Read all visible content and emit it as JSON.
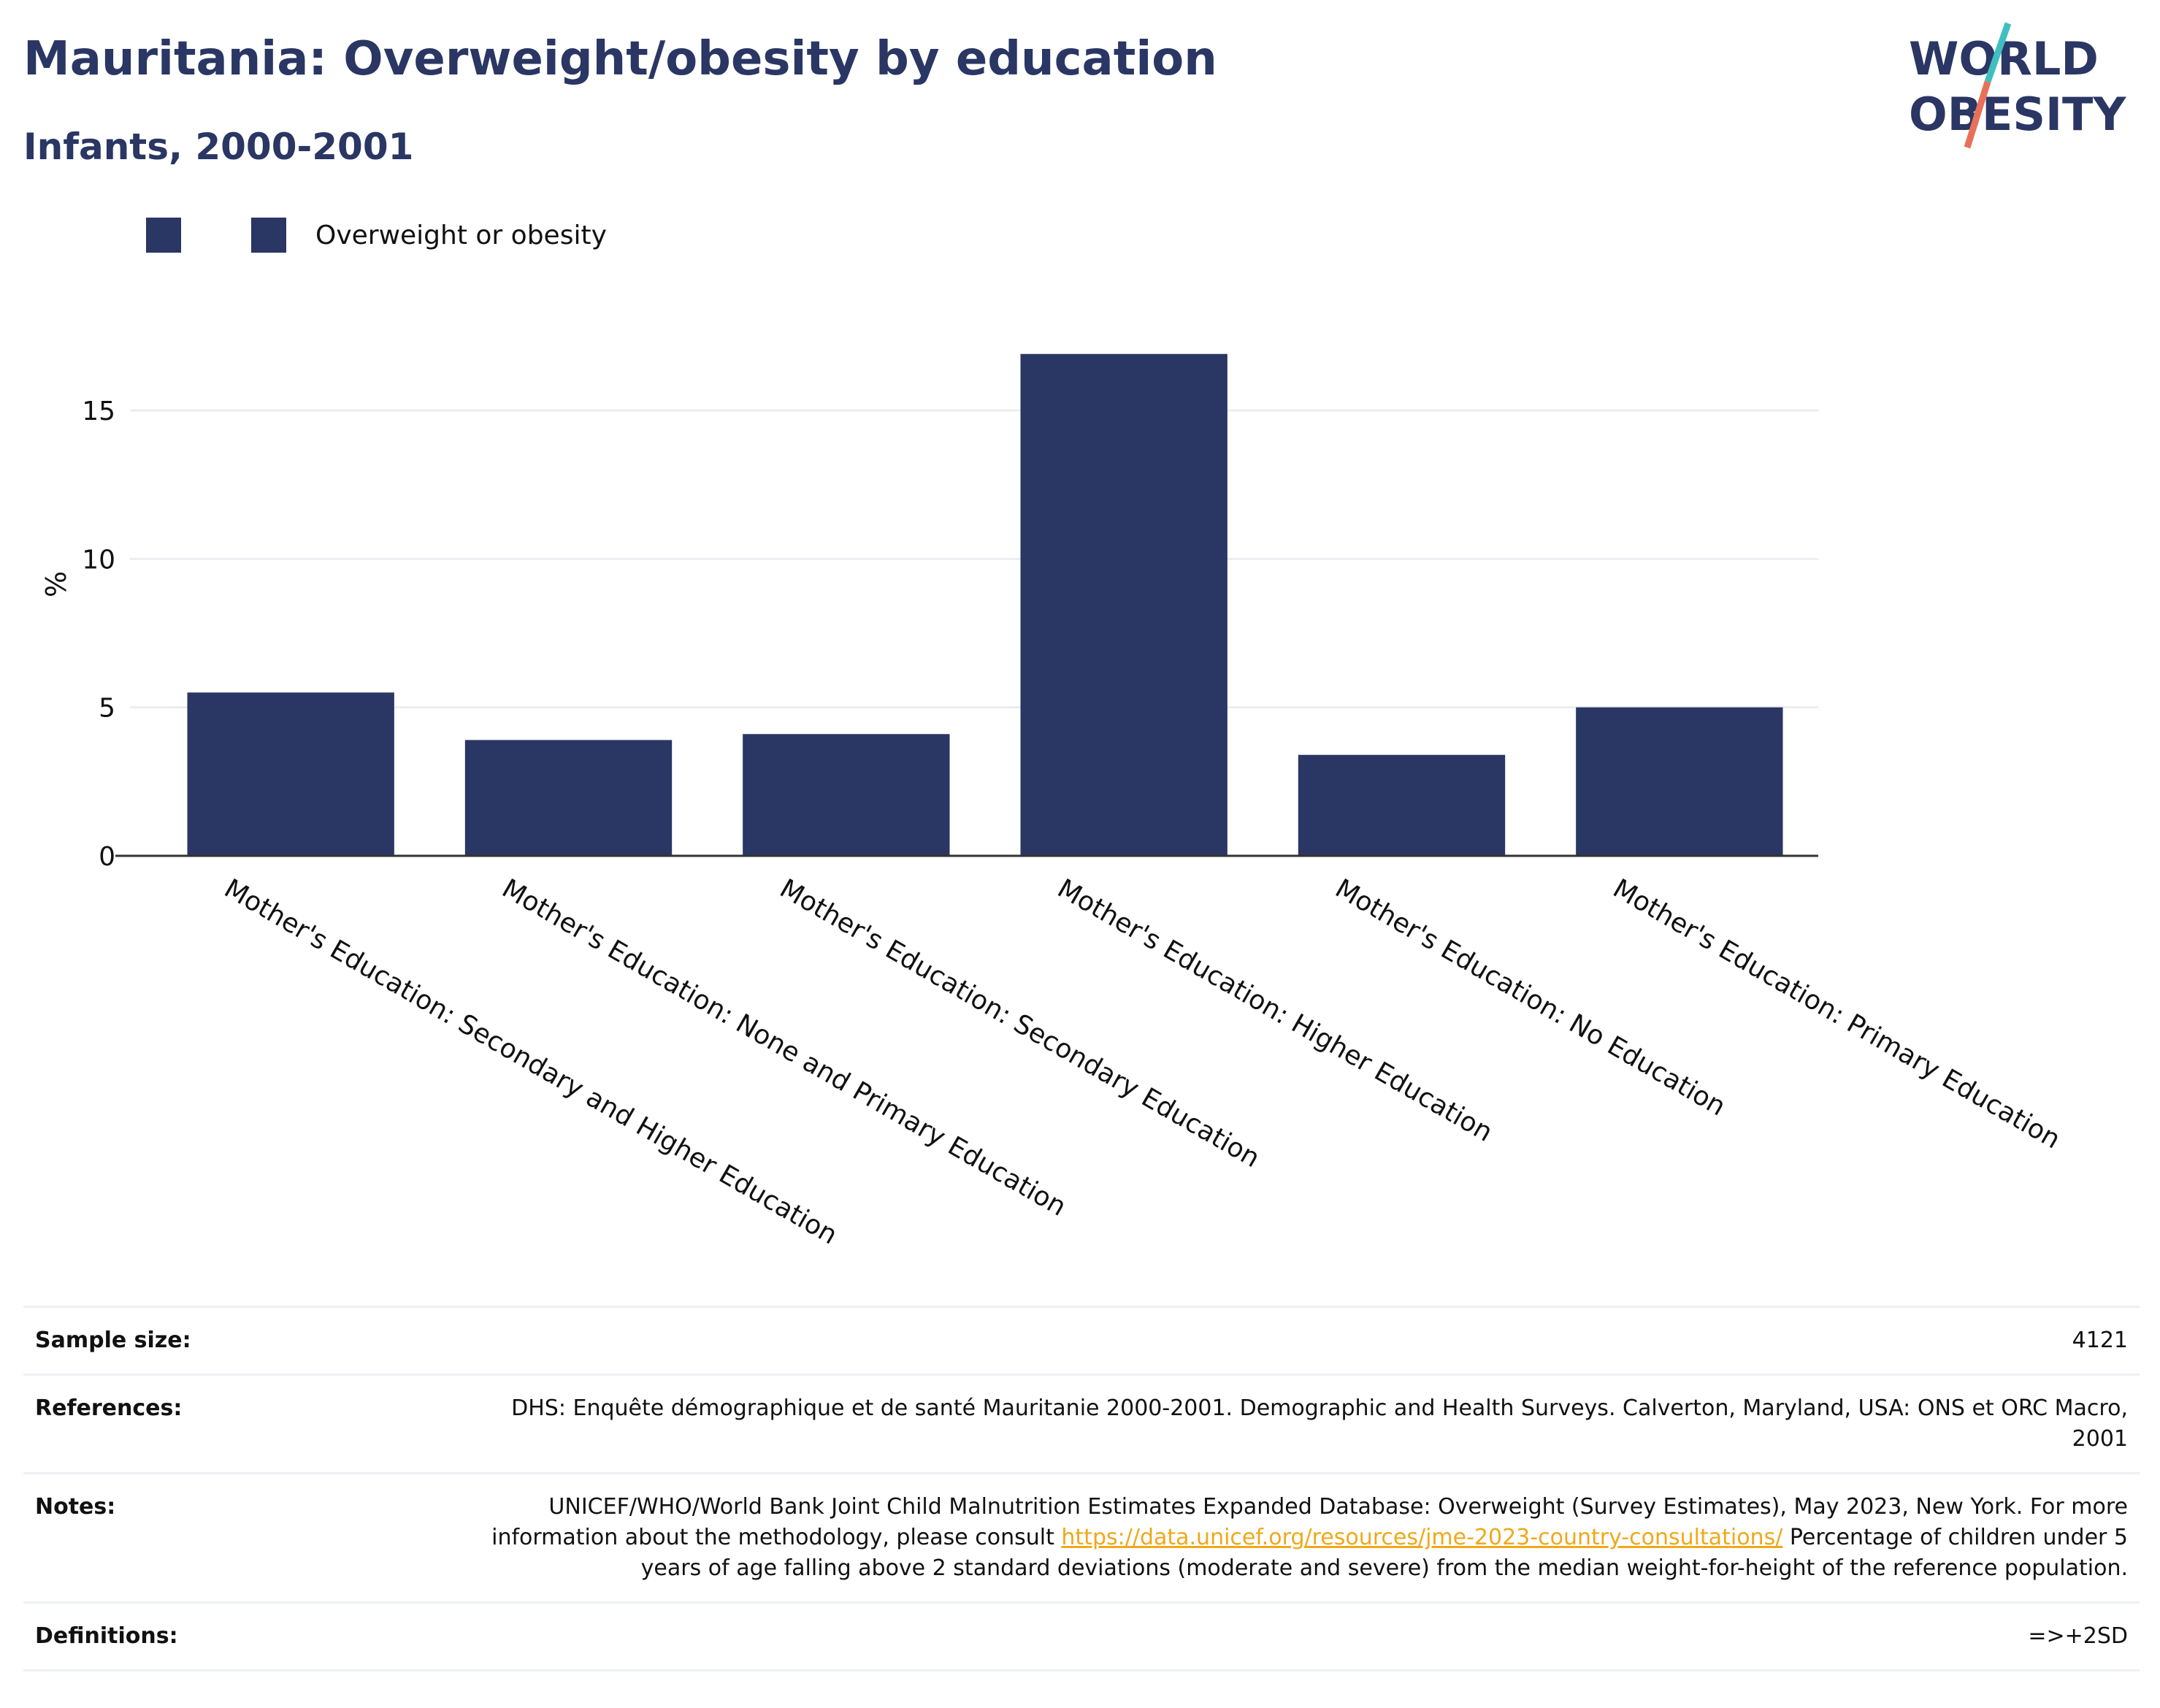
{
  "title": "Mauritania: Overweight/obesity by education",
  "subtitle": "Infants, 2000-2001",
  "logo": {
    "line1": "WORLD",
    "line2": "OBESITY"
  },
  "legend": {
    "label": "Overweight or obesity"
  },
  "colors": {
    "bar": "#2a3663",
    "accent_teal": "#3fbfbf",
    "accent_coral": "#e8705a",
    "link": "#f0a81a"
  },
  "chart_data": {
    "type": "bar",
    "categories": [
      "Mother's Education: Secondary and Higher Education",
      "Mother's Education: None and Primary Education",
      "Mother's Education: Secondary Education",
      "Mother's Education: Higher Education",
      "Mother's Education: No Education",
      "Mother's Education: Primary Education"
    ],
    "series": [
      {
        "name": "Overweight or obesity",
        "values": [
          5.5,
          3.9,
          4.1,
          16.9,
          3.4,
          5.0
        ]
      }
    ],
    "ylabel": "%",
    "xlabel": "",
    "ylim": [
      0,
      18
    ],
    "yticks": [
      0,
      5,
      10,
      15
    ],
    "grid": true,
    "legend": "top-left"
  },
  "info": {
    "sample_size": {
      "label": "Sample size:",
      "value": "4121"
    },
    "references": {
      "label": "References:",
      "value": "DHS: Enquête démographique et de santé Mauritanie 2000-2001. Demographic and Health Surveys. Calverton, Maryland, USA: ONS et ORC Macro, 2001"
    },
    "notes": {
      "label": "Notes:",
      "text_before": "UNICEF/WHO/World Bank Joint Child Malnutrition Estimates Expanded Database: Overweight (Survey Estimates), May 2023, New York. For more information about the methodology, please consult ",
      "link": "https://data.unicef.org/resources/jme-2023-country-consultations/",
      "text_after": " Percentage of children under 5 years of age falling above 2 standard deviations (moderate and severe) from the median weight-for-height of the reference population."
    },
    "definitions": {
      "label": "Definitions:",
      "value": "=>+2SD"
    }
  }
}
